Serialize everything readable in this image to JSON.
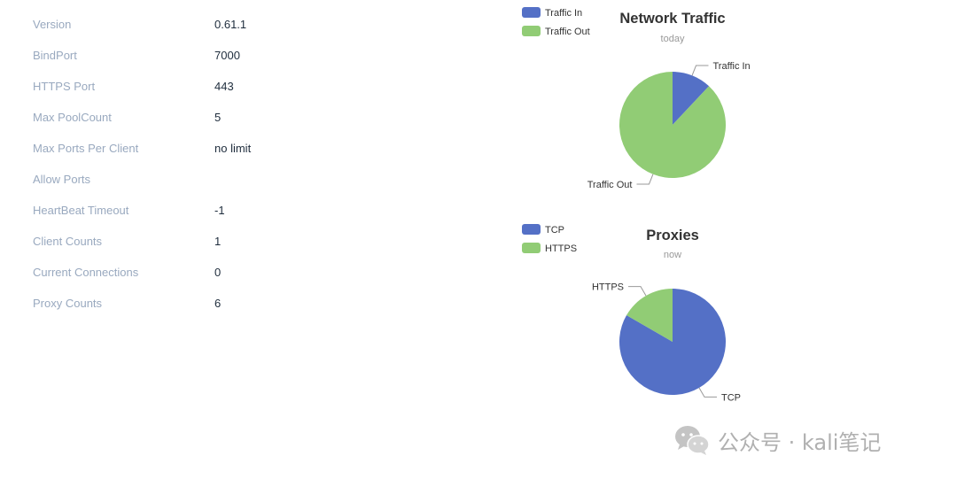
{
  "info": [
    {
      "label": "Version",
      "value": "0.61.1"
    },
    {
      "label": "BindPort",
      "value": "7000"
    },
    {
      "label": "HTTPS Port",
      "value": "443"
    },
    {
      "label": "Max PoolCount",
      "value": "5"
    },
    {
      "label": "Max Ports Per Client",
      "value": "no limit"
    },
    {
      "label": "Allow Ports",
      "value": ""
    },
    {
      "label": "HeartBeat Timeout",
      "value": "-1"
    },
    {
      "label": "Client Counts",
      "value": "1"
    },
    {
      "label": "Current Connections",
      "value": "0"
    },
    {
      "label": "Proxy Counts",
      "value": "6"
    }
  ],
  "chart_data": [
    {
      "type": "pie",
      "title": "Network Traffic",
      "subtitle": "today",
      "categories": [
        "Traffic In",
        "Traffic Out"
      ],
      "values": [
        12,
        88
      ],
      "colors": [
        "#5470c6",
        "#91cc75"
      ],
      "legend_position": "top-left"
    },
    {
      "type": "pie",
      "title": "Proxies",
      "subtitle": "now",
      "categories": [
        "TCP",
        "HTTPS"
      ],
      "values": [
        5,
        1
      ],
      "colors": [
        "#5470c6",
        "#91cc75"
      ],
      "legend_position": "top-left"
    }
  ],
  "watermark": {
    "text": "公众号 · kali笔记",
    "logo_icon": "wechat-icon"
  }
}
